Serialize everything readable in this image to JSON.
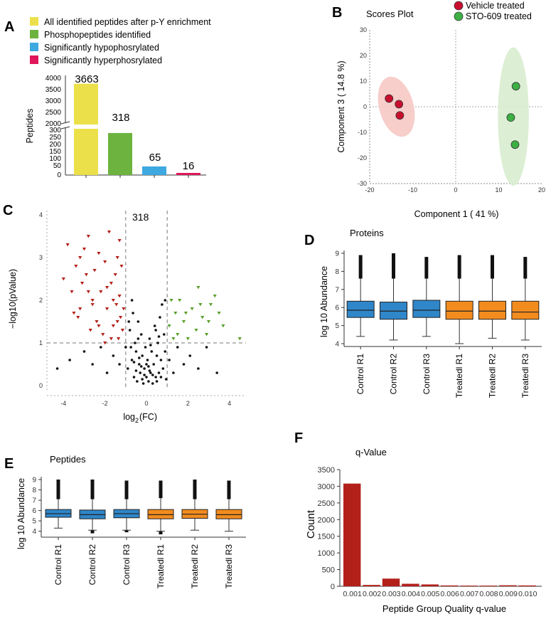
{
  "panels": {
    "a": "A",
    "b": "B",
    "c": "C",
    "d": "D",
    "e": "E",
    "f": "F"
  },
  "colors": {
    "yellow": "#ece04a",
    "green": "#6db33f",
    "blue": "#3ea8e0",
    "pink": "#e0175a",
    "red_point": "#c8102e",
    "green_point": "#3cb043",
    "red_fill": "#f6c9c4",
    "green_fill": "#d8edcf",
    "box_blue": "#2f86c8",
    "box_orange": "#f28c1e",
    "volcano_red": "#b3201a",
    "volcano_green": "#5aa02c",
    "hist_red": "#b3201a"
  },
  "chart_data": [
    {
      "id": "A",
      "type": "bar",
      "legend": [
        "All identified peptides after p-Y enrichment",
        "Phosphopeptides identified",
        "Significantly hypophosrylated",
        "Significantly hyperphosrylated"
      ],
      "ylabel": "Peptides",
      "categories": [
        "All identified peptides after p-Y enrichment",
        "Phosphopeptides identified",
        "Significantly hypophosrylated",
        "Significantly hyperphosrylated"
      ],
      "values": [
        3663,
        318,
        65,
        16
      ],
      "value_labels": [
        "3663",
        "318",
        "65",
        "16"
      ],
      "y_upper_ticks": [
        "4000",
        "3500",
        "3000",
        "2500",
        "2000"
      ],
      "y_upper_range": [
        2000,
        4000
      ],
      "y_lower_ticks": [
        "300",
        "250",
        "200",
        "150",
        "100",
        "50",
        "0"
      ],
      "y_lower_range": [
        0,
        350
      ]
    },
    {
      "id": "B",
      "type": "scatter",
      "title": "Scores Plot",
      "xlabel": "Component 1 ( 41 %)",
      "ylabel": "Component 3 ( 14.8 %)",
      "xlim": [
        -20,
        20
      ],
      "ylim": [
        -30,
        30
      ],
      "xticks": [
        "-20",
        "-10",
        "0",
        "10",
        "20"
      ],
      "yticks": [
        "30",
        "20",
        "10",
        "0",
        "-10",
        "-20",
        "-30"
      ],
      "series": [
        {
          "name": "Vehicle treated",
          "points": [
            [
              -15.5,
              3.2
            ],
            [
              -13.2,
              1.0
            ],
            [
              -13.0,
              -3.4
            ]
          ]
        },
        {
          "name": "STO-609 treated",
          "points": [
            [
              14.0,
              8.0
            ],
            [
              12.8,
              -4.2
            ],
            [
              13.8,
              -14.8
            ]
          ]
        }
      ],
      "ellipses": [
        {
          "series": "Vehicle treated",
          "center": [
            -13.8,
            0.0
          ],
          "rx": 4.0,
          "ry": 12.0
        },
        {
          "series": "STO-609 treated",
          "center": [
            13.4,
            -3.8
          ],
          "rx": 3.6,
          "ry": 27.0
        }
      ]
    },
    {
      "id": "C",
      "type": "scatter",
      "subtype": "volcano",
      "annotation": "318",
      "xlabel_main": "log",
      "xlabel_sub": "2",
      "xlabel_rest": "(FC)",
      "ylabel": "−log10(pValue)",
      "xlim": [
        -4.8,
        4.8
      ],
      "ylim": [
        -0.1,
        4.1
      ],
      "xticks": [
        "-4",
        "-2",
        "0",
        "2",
        "4"
      ],
      "yticks": [
        "4",
        "3",
        "2",
        "1",
        "0"
      ],
      "fc_threshold": 1,
      "p_threshold": 1,
      "series": [
        {
          "name": "down",
          "points": [
            [
              -4.0,
              2.5
            ],
            [
              -3.8,
              3.3
            ],
            [
              -3.6,
              2.2
            ],
            [
              -3.5,
              1.7
            ],
            [
              -3.4,
              2.8
            ],
            [
              -3.3,
              1.6
            ],
            [
              -3.2,
              3.0
            ],
            [
              -3.1,
              2.4
            ],
            [
              -3.0,
              3.2
            ],
            [
              -2.9,
              2.6
            ],
            [
              -2.8,
              3.5
            ],
            [
              -2.7,
              1.3
            ],
            [
              -2.6,
              2.0
            ],
            [
              -2.5,
              2.7
            ],
            [
              -2.4,
              1.5
            ],
            [
              -2.3,
              3.1
            ],
            [
              -2.2,
              2.2
            ],
            [
              -2.1,
              1.2
            ],
            [
              -2.0,
              2.9
            ],
            [
              -1.9,
              1.8
            ],
            [
              -1.8,
              3.6
            ],
            [
              -1.7,
              2.4
            ],
            [
              -1.6,
              1.4
            ],
            [
              -1.5,
              2.6
            ],
            [
              -1.45,
              1.9
            ],
            [
              -1.4,
              3.0
            ],
            [
              -1.35,
              1.1
            ],
            [
              -1.3,
              2.1
            ],
            [
              -1.25,
              1.6
            ],
            [
              -1.2,
              2.8
            ],
            [
              -1.15,
              1.3
            ],
            [
              -1.1,
              1.8
            ],
            [
              -2.6,
              1.9
            ],
            [
              -2.3,
              1.4
            ],
            [
              -1.9,
              2.3
            ],
            [
              -1.6,
              2.0
            ],
            [
              -1.4,
              1.5
            ],
            [
              -2.8,
              2.2
            ],
            [
              -3.2,
              1.8
            ],
            [
              -1.3,
              3.4
            ],
            [
              -2.0,
              1.0
            ],
            [
              -1.7,
              1.1
            ]
          ]
        },
        {
          "name": "up",
          "points": [
            [
              1.1,
              1.4
            ],
            [
              1.2,
              2.0
            ],
            [
              1.3,
              1.1
            ],
            [
              1.4,
              1.7
            ],
            [
              1.5,
              1.2
            ],
            [
              1.6,
              2.0
            ],
            [
              1.8,
              1.5
            ],
            [
              2.0,
              1.1
            ],
            [
              2.2,
              1.8
            ],
            [
              2.4,
              1.3
            ],
            [
              2.5,
              2.3
            ],
            [
              2.7,
              1.6
            ],
            [
              2.9,
              1.2
            ],
            [
              3.1,
              1.9
            ],
            [
              3.3,
              2.1
            ],
            [
              3.5,
              1.7
            ],
            [
              3.7,
              1.4
            ],
            [
              4.5,
              1.1
            ],
            [
              2.6,
              1.9
            ],
            [
              1.9,
              1.7
            ],
            [
              3.0,
              1.5
            ]
          ]
        },
        {
          "name": "ns",
          "points": [
            [
              -4.3,
              0.4
            ],
            [
              -3.7,
              0.6
            ],
            [
              -3.0,
              0.8
            ],
            [
              -2.6,
              0.5
            ],
            [
              -2.2,
              0.9
            ],
            [
              -1.9,
              0.3
            ],
            [
              -1.6,
              0.7
            ],
            [
              -1.3,
              0.5
            ],
            [
              -1.0,
              0.9
            ],
            [
              -0.9,
              0.4
            ],
            [
              -0.8,
              1.3
            ],
            [
              -0.7,
              0.6
            ],
            [
              -0.65,
              1.7
            ],
            [
              -0.6,
              0.2
            ],
            [
              -0.55,
              1.0
            ],
            [
              -0.5,
              0.8
            ],
            [
              -0.45,
              0.1
            ],
            [
              -0.4,
              1.5
            ],
            [
              -0.35,
              0.5
            ],
            [
              -0.3,
              0.3
            ],
            [
              -0.25,
              1.2
            ],
            [
              -0.2,
              0.7
            ],
            [
              -0.15,
              0.05
            ],
            [
              -0.1,
              0.4
            ],
            [
              -0.05,
              0.9
            ],
            [
              0.0,
              0.2
            ],
            [
              0.05,
              0.6
            ],
            [
              0.1,
              0.1
            ],
            [
              0.15,
              1.1
            ],
            [
              0.2,
              0.3
            ],
            [
              0.25,
              0.8
            ],
            [
              0.3,
              0.05
            ],
            [
              0.35,
              0.5
            ],
            [
              0.4,
              1.4
            ],
            [
              0.45,
              0.2
            ],
            [
              0.5,
              0.7
            ],
            [
              0.55,
              1.0
            ],
            [
              0.6,
              0.3
            ],
            [
              0.65,
              1.6
            ],
            [
              0.7,
              0.6
            ],
            [
              0.75,
              1.9
            ],
            [
              0.8,
              0.4
            ],
            [
              0.85,
              1.2
            ],
            [
              0.9,
              0.8
            ],
            [
              0.95,
              0.15
            ],
            [
              1.1,
              0.6
            ],
            [
              1.3,
              0.3
            ],
            [
              1.5,
              0.9
            ],
            [
              1.8,
              0.5
            ],
            [
              2.1,
              0.7
            ],
            [
              2.5,
              0.4
            ],
            [
              2.9,
              0.9
            ],
            [
              3.4,
              0.3
            ],
            [
              -0.75,
              0.9
            ],
            [
              -0.5,
              0.35
            ],
            [
              -0.2,
              0.15
            ],
            [
              0.1,
              0.45
            ],
            [
              0.3,
              0.25
            ],
            [
              0.5,
              0.1
            ],
            [
              0.7,
              0.2
            ],
            [
              -0.35,
              0.65
            ],
            [
              -0.6,
              0.55
            ],
            [
              0.2,
              0.95
            ],
            [
              0.45,
              1.3
            ],
            [
              -0.4,
              1.1
            ],
            [
              0.6,
              1.15
            ],
            [
              -0.85,
              1.5
            ],
            [
              -0.7,
              2.0
            ],
            [
              0.9,
              2.0
            ],
            [
              -0.1,
              0.25
            ],
            [
              0.0,
              0.5
            ],
            [
              0.15,
              0.35
            ],
            [
              -0.25,
              0.45
            ]
          ]
        }
      ]
    },
    {
      "id": "D",
      "type": "boxplot",
      "title": "Proteins",
      "ylabel": "log 10 Abundance",
      "ylim": [
        4,
        9
      ],
      "yticks": [
        "9",
        "8",
        "7",
        "6",
        "5",
        "4"
      ],
      "categories": [
        "Control R1",
        "Control R2",
        "Control R3",
        "Treatedl R1",
        "Treatedl R2",
        "Treatedl R3"
      ],
      "groups": [
        "control",
        "control",
        "control",
        "treated",
        "treated",
        "treated"
      ],
      "boxes": [
        {
          "min": 4.4,
          "q1": 5.45,
          "median": 5.85,
          "q3": 6.35,
          "max": 7.6,
          "outlier_max": 8.9
        },
        {
          "min": 4.2,
          "q1": 5.35,
          "median": 5.8,
          "q3": 6.3,
          "max": 7.6,
          "outlier_max": 9.0
        },
        {
          "min": 4.4,
          "q1": 5.45,
          "median": 5.85,
          "q3": 6.4,
          "max": 7.6,
          "outlier_max": 8.8
        },
        {
          "min": 4.0,
          "q1": 5.35,
          "median": 5.8,
          "q3": 6.35,
          "max": 7.6,
          "outlier_max": 8.9
        },
        {
          "min": 4.3,
          "q1": 5.35,
          "median": 5.8,
          "q3": 6.35,
          "max": 7.6,
          "outlier_max": 8.9
        },
        {
          "min": 4.2,
          "q1": 5.35,
          "median": 5.75,
          "q3": 6.35,
          "max": 7.6,
          "outlier_max": 8.8
        }
      ]
    },
    {
      "id": "E",
      "type": "boxplot",
      "title": "Peptides",
      "ylabel": "log 10 Abundance",
      "ylim": [
        3.7,
        9
      ],
      "yticks": [
        "9",
        "8",
        "7",
        "6",
        "5",
        "4"
      ],
      "categories": [
        "Control R1",
        "Control R2",
        "Control R3",
        "Treatedl R1",
        "Treatedl R2",
        "Treatedl R3"
      ],
      "groups": [
        "control",
        "control",
        "control",
        "treated",
        "treated",
        "treated"
      ],
      "boxes": [
        {
          "min": 4.3,
          "q1": 5.35,
          "median": 5.7,
          "q3": 6.1,
          "max": 7.1,
          "outlier_max": 9.0,
          "outlier_min": null
        },
        {
          "min": 4.1,
          "q1": 5.2,
          "median": 5.6,
          "q3": 6.05,
          "max": 7.1,
          "outlier_max": 9.0,
          "outlier_min": 3.8
        },
        {
          "min": 4.1,
          "q1": 5.3,
          "median": 5.7,
          "q3": 6.1,
          "max": 7.1,
          "outlier_max": 8.9,
          "outlier_min": 3.9
        },
        {
          "min": 4.0,
          "q1": 5.2,
          "median": 5.6,
          "q3": 6.1,
          "max": 7.2,
          "outlier_max": 8.9,
          "outlier_min": 3.7
        },
        {
          "min": 4.1,
          "q1": 5.25,
          "median": 5.65,
          "q3": 6.1,
          "max": 7.1,
          "outlier_max": 9.0,
          "outlier_min": null
        },
        {
          "min": 4.0,
          "q1": 5.2,
          "median": 5.6,
          "q3": 6.1,
          "max": 7.1,
          "outlier_max": 8.9,
          "outlier_min": null
        }
      ]
    },
    {
      "id": "F",
      "type": "bar",
      "title": "q-Value",
      "xlabel": "Peptide Group Quality q-value",
      "ylabel": "Count",
      "ylim": [
        0,
        3500
      ],
      "yticks": [
        "3500",
        "3000",
        "2500",
        "2000",
        "1500",
        "1000",
        "500",
        "0"
      ],
      "categories": [
        "0.001",
        "0.002",
        "0.003",
        "0.004",
        "0.005",
        "0.006",
        "0.007",
        "0.008",
        "0.009",
        "0.010"
      ],
      "x_tick_labels": [
        "0.001",
        "0.002",
        "0.003",
        "0.004",
        "0.005",
        "0.006",
        "0.007",
        "0.008",
        "0.009",
        "0.010"
      ],
      "values": [
        3080,
        40,
        230,
        75,
        55,
        25,
        20,
        20,
        30,
        25
      ]
    }
  ]
}
